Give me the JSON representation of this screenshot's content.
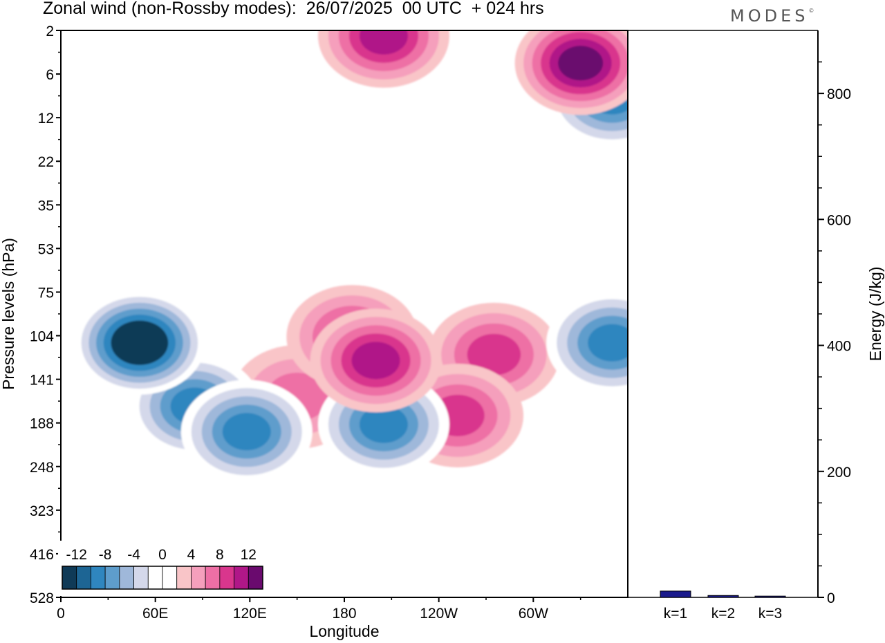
{
  "title": "Zonal wind (non-Rossby modes):  26/07/2025  00 UTC  + 024 hrs",
  "brand": {
    "name": "MODES",
    "mark": "©"
  },
  "chart_data": [
    {
      "type": "heatmap",
      "variable": "Zonal wind",
      "xlabel": "Longitude",
      "ylabel": "Pressure levels (hPa)",
      "x_ticks": [
        "0",
        "60E",
        "120E",
        "180",
        "120W",
        "60W"
      ],
      "x_tick_values": [
        0,
        60,
        120,
        180,
        240,
        300
      ],
      "xlim": [
        0,
        360
      ],
      "y_ticks": [
        "2",
        "6",
        "12",
        "22",
        "35",
        "53",
        "75",
        "104",
        "141",
        "188",
        "248",
        "323",
        "416",
        "528"
      ],
      "y_range_hPa": [
        2,
        528
      ],
      "colorbar": {
        "labels": [
          "-12",
          "-8",
          "-4",
          "0",
          "4",
          "8",
          "12"
        ],
        "levels": [
          -14,
          -12,
          -10,
          -8,
          -6,
          -4,
          -2,
          2,
          4,
          6,
          8,
          10,
          12,
          14
        ],
        "colors": [
          "#0f3a57",
          "#1d6594",
          "#2f86bf",
          "#5e9dcc",
          "#9fb8da",
          "#d4d8ea",
          "#ffffff",
          "#ffffff",
          "#f9c5c8",
          "#f59fbc",
          "#ee6fa5",
          "#d9368d",
          "#b01788",
          "#6a0a6e"
        ]
      },
      "features": [
        {
          "sign": "negative",
          "lon": 50,
          "level_hPa": 110,
          "peak": -14
        },
        {
          "sign": "negative",
          "lon": 85,
          "level_hPa": 170,
          "peak": -10
        },
        {
          "sign": "negative",
          "lon": 118,
          "level_hPa": 200,
          "peak": -10
        },
        {
          "sign": "negative",
          "lon": 205,
          "level_hPa": 190,
          "peak": -10
        },
        {
          "sign": "negative",
          "lon": 350,
          "level_hPa": 110,
          "peak": -10
        },
        {
          "sign": "negative",
          "lon": 350,
          "level_hPa": 9,
          "peak": -10
        },
        {
          "sign": "positive",
          "lon": 200,
          "level_hPa": 125,
          "peak": 10
        },
        {
          "sign": "positive",
          "lon": 185,
          "level_hPa": 105,
          "peak": 8
        },
        {
          "sign": "positive",
          "lon": 150,
          "level_hPa": 160,
          "peak": 6
        },
        {
          "sign": "positive",
          "lon": 275,
          "level_hPa": 120,
          "peak": 8
        },
        {
          "sign": "positive",
          "lon": 252,
          "level_hPa": 180,
          "peak": 8
        },
        {
          "sign": "positive",
          "lon": 330,
          "level_hPa": 5,
          "peak": 12
        },
        {
          "sign": "positive",
          "lon": 205,
          "level_hPa": 2.5,
          "peak": 10
        }
      ]
    },
    {
      "type": "bar",
      "ylabel": "Energy (J/kg)",
      "categories": [
        "k=1",
        "k=2",
        "k=3"
      ],
      "values": [
        10,
        3,
        2
      ],
      "ylim": [
        0,
        900
      ],
      "y_ticks": [
        "0",
        "200",
        "400",
        "600",
        "800"
      ],
      "bar_color": "#1a1a8c"
    }
  ]
}
